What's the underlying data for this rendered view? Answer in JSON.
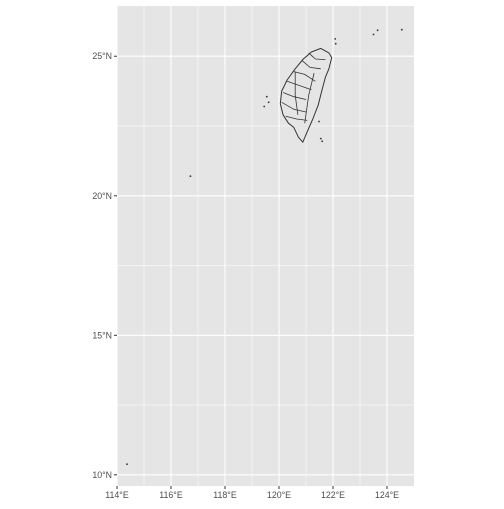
{
  "map": {
    "type": "choropleth-outline",
    "projection": "equirectangular",
    "panel_background": "#e5e5e5",
    "grid_color": "#ffffff",
    "outline_color": "#333333",
    "fill_color": "#e5e5e5",
    "lon_range": [
      114.0,
      125.0
    ],
    "lat_range": [
      9.6,
      26.8
    ],
    "x_ticks": [
      {
        "value": 114,
        "label": "114°E"
      },
      {
        "value": 116,
        "label": "116°E"
      },
      {
        "value": 118,
        "label": "118°E"
      },
      {
        "value": 120,
        "label": "120°E"
      },
      {
        "value": 122,
        "label": "122°E"
      },
      {
        "value": 124,
        "label": "124°E"
      }
    ],
    "y_ticks": [
      {
        "value": 10,
        "label": "10°N"
      },
      {
        "value": 15,
        "label": "15°N"
      },
      {
        "value": 20,
        "label": "20°N"
      },
      {
        "value": 25,
        "label": "25°N"
      }
    ],
    "features": [
      {
        "name": "taiwan-island",
        "kind": "polygon",
        "coords": [
          [
            121.55,
            25.28
          ],
          [
            121.85,
            25.12
          ],
          [
            121.95,
            24.95
          ],
          [
            121.85,
            24.55
          ],
          [
            121.72,
            24.25
          ],
          [
            121.58,
            23.75
          ],
          [
            121.45,
            23.25
          ],
          [
            121.25,
            22.75
          ],
          [
            121.05,
            22.3
          ],
          [
            120.88,
            21.92
          ],
          [
            120.72,
            22.1
          ],
          [
            120.55,
            22.45
          ],
          [
            120.35,
            22.6
          ],
          [
            120.15,
            22.9
          ],
          [
            120.05,
            23.3
          ],
          [
            120.1,
            23.75
          ],
          [
            120.3,
            24.15
          ],
          [
            120.6,
            24.55
          ],
          [
            120.9,
            24.9
          ],
          [
            121.2,
            25.15
          ]
        ]
      },
      {
        "name": "county-borders",
        "kind": "lines",
        "lines": [
          [
            [
              121.1,
              25.12
            ],
            [
              121.35,
              24.9
            ],
            [
              121.72,
              24.88
            ]
          ],
          [
            [
              120.85,
              24.85
            ],
            [
              121.15,
              24.6
            ],
            [
              121.55,
              24.55
            ]
          ],
          [
            [
              120.55,
              24.45
            ],
            [
              120.95,
              24.35
            ],
            [
              121.35,
              24.1
            ]
          ],
          [
            [
              120.3,
              24.1
            ],
            [
              120.75,
              23.95
            ],
            [
              121.2,
              23.8
            ]
          ],
          [
            [
              120.15,
              23.7
            ],
            [
              120.55,
              23.55
            ],
            [
              121.0,
              23.45
            ]
          ],
          [
            [
              120.1,
              23.35
            ],
            [
              120.55,
              23.1
            ],
            [
              121.0,
              23.0
            ]
          ],
          [
            [
              120.25,
              22.85
            ],
            [
              120.65,
              22.75
            ],
            [
              121.05,
              22.7
            ]
          ],
          [
            [
              120.6,
              24.45
            ],
            [
              120.6,
              23.6
            ],
            [
              120.7,
              22.9
            ]
          ],
          [
            [
              121.3,
              24.4
            ],
            [
              121.1,
              23.6
            ],
            [
              120.95,
              22.6
            ]
          ]
        ]
      },
      {
        "name": "penghu-islands",
        "kind": "dots",
        "points": [
          [
            119.55,
            23.55
          ],
          [
            119.62,
            23.35
          ],
          [
            119.45,
            23.2
          ]
        ]
      },
      {
        "name": "green-island",
        "kind": "dots",
        "points": [
          [
            121.48,
            22.66
          ]
        ]
      },
      {
        "name": "orchid-island",
        "kind": "dots",
        "points": [
          [
            121.55,
            22.05
          ],
          [
            121.6,
            21.95
          ]
        ]
      },
      {
        "name": "northern-islets",
        "kind": "dots",
        "points": [
          [
            122.08,
            25.62
          ],
          [
            122.1,
            25.45
          ],
          [
            123.5,
            25.78
          ],
          [
            123.65,
            25.93
          ],
          [
            124.55,
            25.95
          ]
        ]
      },
      {
        "name": "dongsha-island",
        "kind": "dots",
        "points": [
          [
            116.72,
            20.7
          ]
        ]
      },
      {
        "name": "taiping-island",
        "kind": "dots",
        "points": [
          [
            114.37,
            10.38
          ]
        ]
      }
    ]
  }
}
